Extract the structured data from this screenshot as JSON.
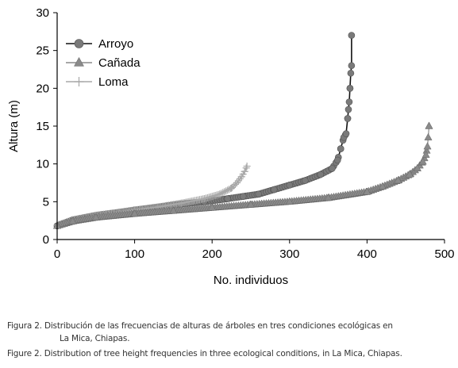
{
  "chart_data": {
    "type": "scatter",
    "title": "",
    "xlabel": "No. individuos",
    "ylabel": "Altura (m)",
    "xlim": [
      0,
      500
    ],
    "ylim": [
      0,
      30
    ],
    "xticks": [
      0,
      100,
      200,
      300,
      400,
      500
    ],
    "yticks": [
      0,
      5,
      10,
      15,
      20,
      25,
      30
    ],
    "grid": false,
    "legend": "top-left",
    "series": [
      {
        "name": "Arroyo",
        "marker": "circle",
        "color": "#7a7a7a",
        "line_color": "#111111",
        "points": [
          [
            0,
            1.8
          ],
          [
            20,
            2.6
          ],
          [
            50,
            3.2
          ],
          [
            80,
            3.6
          ],
          [
            100,
            3.9
          ],
          [
            130,
            4.3
          ],
          [
            160,
            4.7
          ],
          [
            190,
            5.0
          ],
          [
            220,
            5.4
          ],
          [
            240,
            5.7
          ],
          [
            260,
            6.0
          ],
          [
            280,
            6.6
          ],
          [
            300,
            7.2
          ],
          [
            320,
            7.8
          ],
          [
            340,
            8.6
          ],
          [
            355,
            9.4
          ],
          [
            362,
            10.5
          ],
          [
            366,
            12.0
          ],
          [
            370,
            13.5
          ],
          [
            373,
            14.0
          ],
          [
            375,
            16.0
          ],
          [
            376,
            17.2
          ],
          [
            377,
            18.2
          ],
          [
            378,
            20.0
          ],
          [
            379,
            22.0
          ],
          [
            380,
            23.0
          ],
          [
            380,
            27.0
          ]
        ]
      },
      {
        "name": "Cañada",
        "marker": "triangle",
        "color": "#8a8a8a",
        "line_color": "#8a8a8a",
        "points": [
          [
            0,
            1.8
          ],
          [
            20,
            2.4
          ],
          [
            50,
            2.9
          ],
          [
            100,
            3.4
          ],
          [
            150,
            3.8
          ],
          [
            200,
            4.2
          ],
          [
            250,
            4.6
          ],
          [
            300,
            5.0
          ],
          [
            350,
            5.5
          ],
          [
            400,
            6.3
          ],
          [
            420,
            7.0
          ],
          [
            440,
            7.8
          ],
          [
            455,
            8.6
          ],
          [
            465,
            9.4
          ],
          [
            472,
            10.3
          ],
          [
            476,
            11.2
          ],
          [
            478,
            12.3
          ],
          [
            479,
            13.5
          ],
          [
            480,
            15.0
          ]
        ]
      },
      {
        "name": "Loma",
        "marker": "plus",
        "color": "#a8a8a8",
        "line_color": "#a8a8a8",
        "points": [
          [
            0,
            1.9
          ],
          [
            20,
            2.6
          ],
          [
            50,
            3.2
          ],
          [
            80,
            3.6
          ],
          [
            100,
            3.9
          ],
          [
            130,
            4.3
          ],
          [
            160,
            4.8
          ],
          [
            190,
            5.4
          ],
          [
            210,
            6.0
          ],
          [
            225,
            6.8
          ],
          [
            232,
            7.5
          ],
          [
            238,
            8.3
          ],
          [
            242,
            9.0
          ],
          [
            245,
            9.7
          ]
        ]
      }
    ]
  },
  "caption": {
    "es_line1": "Figura 2. Distribución de las frecuencias de alturas de árboles en tres condiciones ecológicas en",
    "es_line2": "La Mica, Chiapas.",
    "en": "Figure 2. Distribution of tree height frequencies in three ecological conditions, in La Mica, Chiapas."
  }
}
